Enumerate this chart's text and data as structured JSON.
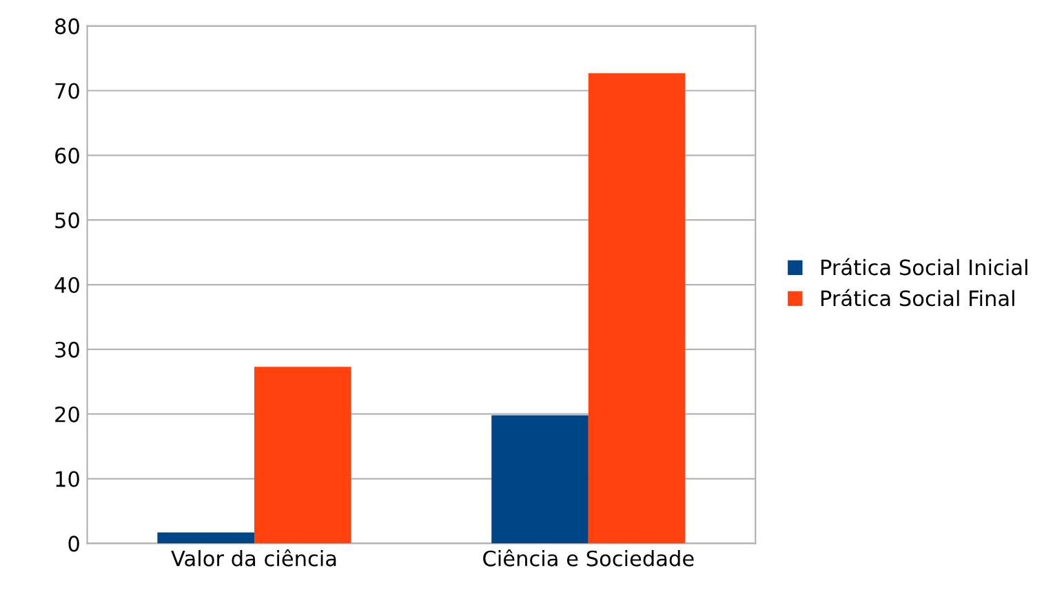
{
  "chart_data": {
    "type": "bar",
    "categories": [
      "Valor da ciência",
      "Ciência e Sociedade"
    ],
    "series": [
      {
        "name": "Prática Social Inicial",
        "color": "#004586",
        "values": [
          1.7,
          19.8
        ]
      },
      {
        "name": "Prática Social Final",
        "color": "#ff420e",
        "values": [
          27.3,
          72.7
        ]
      }
    ],
    "ylim": [
      0,
      80
    ],
    "yticks": [
      0,
      10,
      20,
      30,
      40,
      50,
      60,
      70,
      80
    ],
    "grid": "y",
    "legend": "right"
  }
}
